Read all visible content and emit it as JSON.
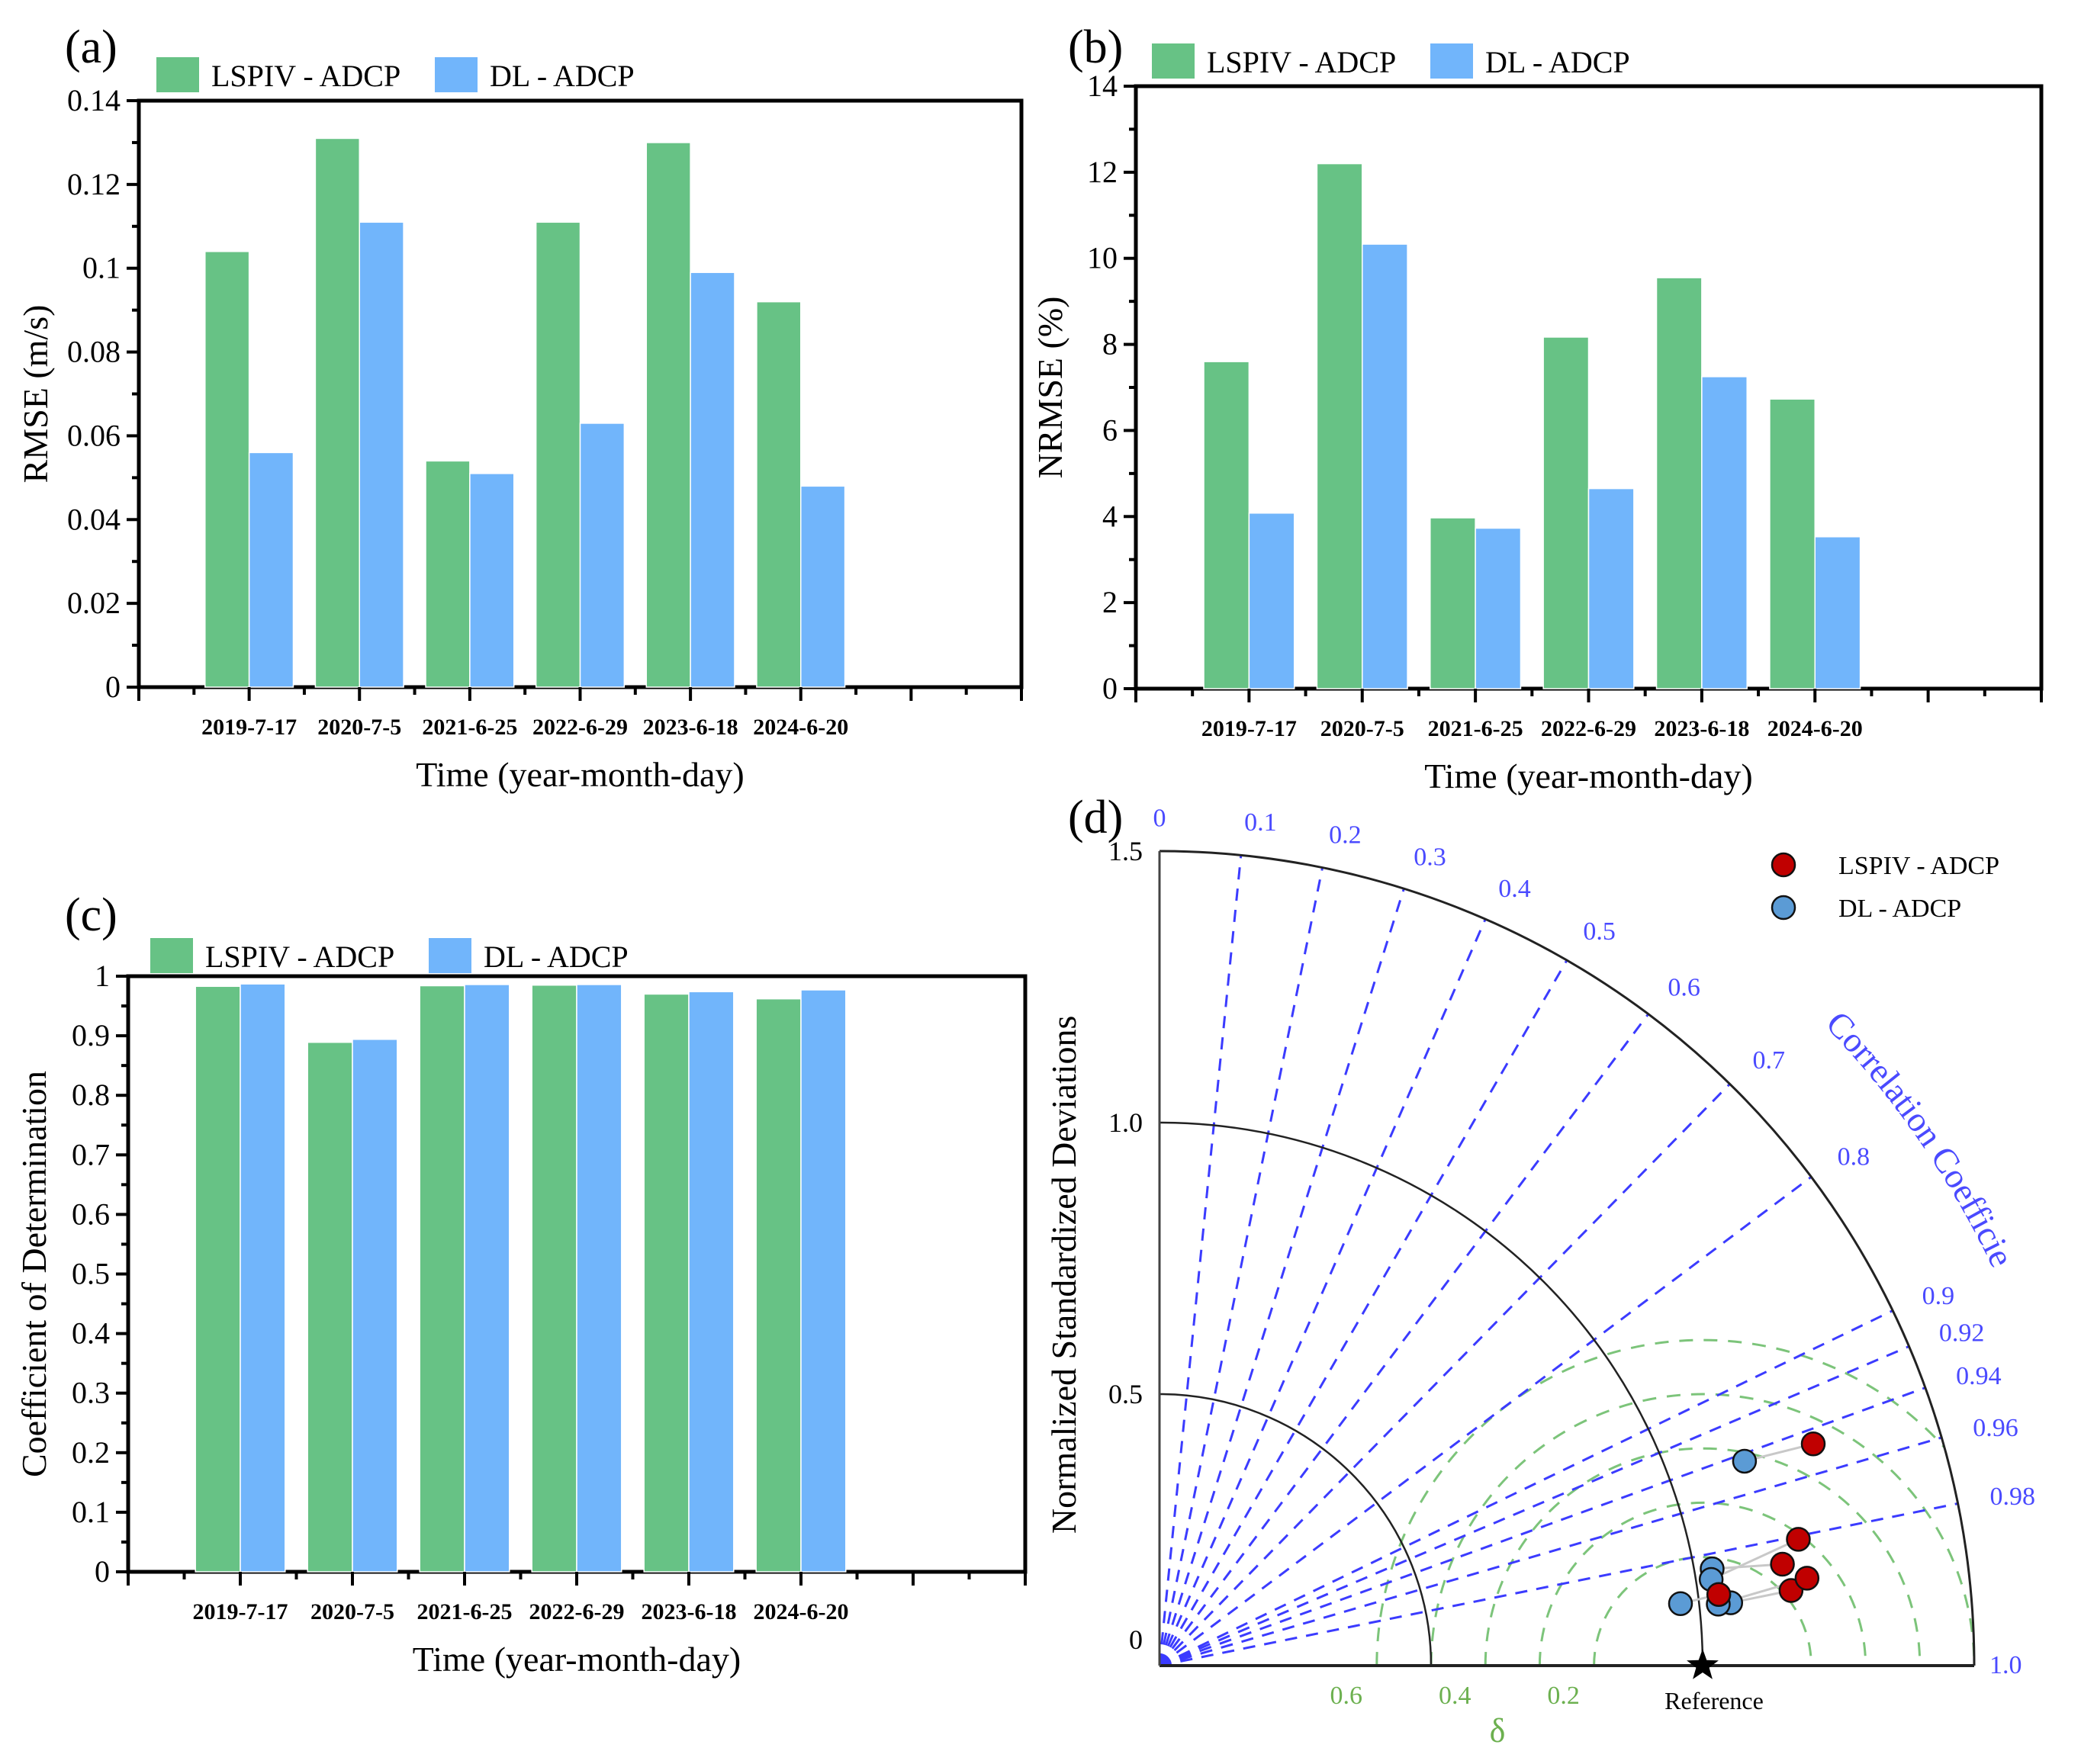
{
  "colors": {
    "lspiv_bar": "#67c285",
    "dl_bar": "#71b5fb",
    "lspiv_point": "#c00000",
    "dl_point": "#5b9bd5",
    "corr_line": "#3b3bff",
    "delta_line": "#7cc47a",
    "pair_line": "#c8c8c8"
  },
  "legend": {
    "lspiv": "LSPIV - ADCP",
    "dl": "DL - ADCP"
  },
  "chart_data": [
    {
      "panel": "(a)",
      "type": "bar",
      "categories": [
        "2019-7-17",
        "2020-7-5",
        "2021-6-25",
        "2022-6-29",
        "2023-6-18",
        "2024-6-20"
      ],
      "series": [
        {
          "name": "LSPIV - ADCP",
          "values": [
            0.104,
            0.131,
            0.054,
            0.111,
            0.13,
            0.092
          ]
        },
        {
          "name": "DL - ADCP",
          "values": [
            0.056,
            0.111,
            0.051,
            0.063,
            0.099,
            0.048
          ]
        }
      ],
      "xlabel": "Time (year-month-day)",
      "ylabel": "RMSE (m/s)",
      "ylim": [
        0,
        0.14
      ],
      "yticks": [
        0,
        0.02,
        0.04,
        0.06,
        0.08,
        0.1,
        0.12,
        0.14
      ],
      "ytick_labels": [
        "0",
        "0.02",
        "0.04",
        "0.06",
        "0.08",
        "0.1",
        "0.12",
        "0.14"
      ],
      "legend_position": "top-left",
      "grid": false
    },
    {
      "panel": "(b)",
      "type": "bar",
      "categories": [
        "2019-7-17",
        "2020-7-5",
        "2021-6-25",
        "2022-6-29",
        "2023-6-18",
        "2024-6-20"
      ],
      "series": [
        {
          "name": "LSPIV - ADCP",
          "values": [
            7.6,
            12.2,
            3.97,
            8.17,
            9.55,
            6.73
          ]
        },
        {
          "name": "DL - ADCP",
          "values": [
            4.08,
            10.33,
            3.73,
            4.65,
            7.25,
            3.53
          ]
        }
      ],
      "xlabel": "Time (year-month-day)",
      "ylabel": "NRMSE (%)",
      "ylim": [
        0,
        14
      ],
      "yticks": [
        0,
        2,
        4,
        6,
        8,
        10,
        12,
        14
      ],
      "ytick_labels": [
        "0",
        "2",
        "4",
        "6",
        "8",
        "10",
        "12",
        "14"
      ],
      "legend_position": "top-left",
      "grid": false
    },
    {
      "panel": "(c)",
      "type": "bar",
      "categories": [
        "2019-7-17",
        "2020-7-5",
        "2021-6-25",
        "2022-6-29",
        "2023-6-18",
        "2024-6-20"
      ],
      "series": [
        {
          "name": "LSPIV - ADCP",
          "values": [
            0.983,
            0.889,
            0.984,
            0.985,
            0.97,
            0.962
          ]
        },
        {
          "name": "DL - ADCP",
          "values": [
            0.987,
            0.894,
            0.986,
            0.986,
            0.974,
            0.977
          ]
        }
      ],
      "xlabel": "Time (year-month-day)",
      "ylabel": "Coefficient of Determination",
      "ylim": [
        0,
        1
      ],
      "yticks": [
        0,
        0.1,
        0.2,
        0.3,
        0.4,
        0.5,
        0.6,
        0.7,
        0.8,
        0.9,
        1
      ],
      "ytick_labels": [
        "0",
        "0.1",
        "0.2",
        "0.3",
        "0.4",
        "0.5",
        "0.6",
        "0.7",
        "0.8",
        "0.9",
        "1"
      ],
      "legend_position": "top-left",
      "grid": false
    },
    {
      "panel": "(d)",
      "type": "scatter",
      "subtype": "taylor-diagram",
      "ylabel": "Normalized Standardized Deviations",
      "corr_title": "Correlation Coefficient",
      "delta_label": "δ",
      "reference_label": "Reference",
      "reference_std": 1.0,
      "std_max": 1.5,
      "std_arcs": [
        0.5,
        1.0,
        1.5
      ],
      "std_tick_labels": [
        {
          "v": 0,
          "t": "0"
        },
        {
          "v": 0.5,
          "t": "0.5"
        },
        {
          "v": 1.0,
          "t": "1.0"
        },
        {
          "v": 1.5,
          "t": "1.5"
        }
      ],
      "corr_ticks": [
        0,
        0.1,
        0.2,
        0.3,
        0.4,
        0.5,
        0.6,
        0.7,
        0.8,
        0.9,
        0.92,
        0.94,
        0.96,
        0.98,
        1.0
      ],
      "corr_tick_labels": [
        "0",
        "0.1",
        "0.2",
        "0.3",
        "0.4",
        "0.5",
        "0.6",
        "0.7",
        "0.8",
        "0.9",
        "0.92",
        "0.94",
        "0.96",
        "0.98",
        "1.0"
      ],
      "delta_arcs": [
        0.2,
        0.3,
        0.4,
        0.5,
        0.6
      ],
      "delta_tick_labels": [
        {
          "v": 0.6,
          "t": "0.6"
        },
        {
          "v": 0.4,
          "t": "0.4"
        },
        {
          "v": 0.2,
          "t": "0.2"
        }
      ],
      "series": [
        {
          "name": "LSPIV - ADCP",
          "points": [
            {
              "std": 1.271,
              "corr": 0.947
            },
            {
              "std": 1.162,
              "corr": 0.987
            },
            {
              "std": 1.199,
              "corr": 0.981
            },
            {
              "std": 1.038,
              "corr": 0.992
            },
            {
              "std": 1.171,
              "corr": 0.993
            },
            {
              "std": 1.203,
              "corr": 0.991
            }
          ]
        },
        {
          "name": "DL - ADCP",
          "points": [
            {
              "std": 1.141,
              "corr": 0.944
            },
            {
              "std": 1.033,
              "corr": 0.985
            },
            {
              "std": 1.028,
              "corr": 0.988
            },
            {
              "std": 0.966,
              "corr": 0.993
            },
            {
              "std": 1.058,
              "corr": 0.994
            },
            {
              "std": 1.035,
              "corr": 0.994
            }
          ]
        }
      ],
      "legend_position": "top-right"
    }
  ]
}
